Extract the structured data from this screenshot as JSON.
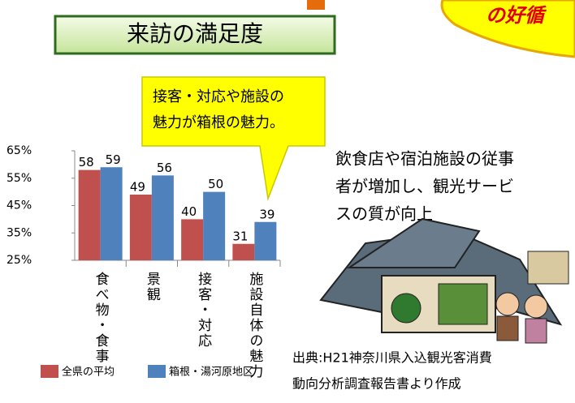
{
  "chart_data": {
    "type": "bar",
    "title": "来訪の満足度",
    "categories": [
      "食べ物・食事",
      "景観",
      "接客・対応",
      "施設自体の魅力"
    ],
    "series": [
      {
        "name": "全県の平均",
        "color": "#c0504d",
        "values": [
          58,
          49,
          40,
          31
        ]
      },
      {
        "name": "箱根・湯河原地区",
        "color": "#4f81bd",
        "values": [
          59,
          56,
          50,
          39
        ]
      }
    ],
    "ylim": [
      25,
      65
    ],
    "yticks": [
      {
        "value": 25,
        "label": "25%"
      },
      {
        "value": 35,
        "label": "35%"
      },
      {
        "value": 45,
        "label": "45%"
      },
      {
        "value": 55,
        "label": "55%"
      },
      {
        "value": 65,
        "label": "65%"
      }
    ],
    "grid": false
  },
  "banner": {
    "text": "の好循"
  },
  "callout": {
    "lines": [
      "接客・対応や施設の",
      "魅力が箱根の魅力。"
    ]
  },
  "note": {
    "lines": [
      "飲食店や宿泊施設の従事",
      "者が増加し、観光サービ",
      "スの質が向上"
    ]
  },
  "source": {
    "lines": [
      "出典:H21神奈川県入込観光客消費",
      "動向分析調査報告書より作成"
    ]
  }
}
